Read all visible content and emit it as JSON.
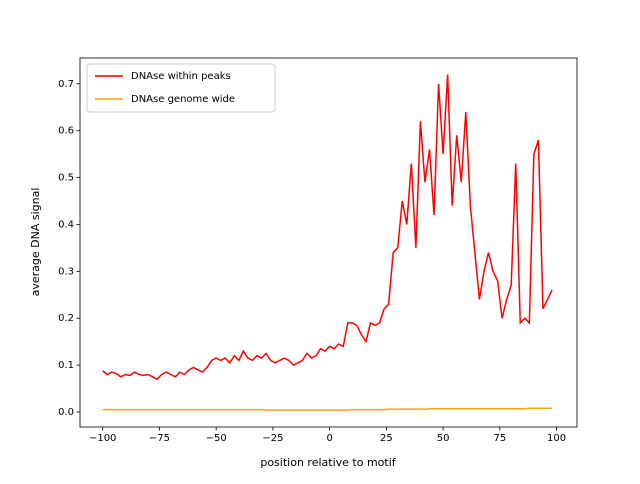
{
  "chart_data": {
    "type": "line",
    "xlabel": "position relative to motif",
    "ylabel": "average DNA signal",
    "x": [
      -100,
      -98,
      -96,
      -94,
      -92,
      -90,
      -88,
      -86,
      -84,
      -82,
      -80,
      -78,
      -76,
      -74,
      -72,
      -70,
      -68,
      -66,
      -64,
      -62,
      -60,
      -58,
      -56,
      -54,
      -52,
      -50,
      -48,
      -46,
      -44,
      -42,
      -40,
      -38,
      -36,
      -34,
      -32,
      -30,
      -28,
      -26,
      -24,
      -22,
      -20,
      -18,
      -16,
      -14,
      -12,
      -10,
      -8,
      -6,
      -4,
      -2,
      0,
      2,
      4,
      6,
      8,
      10,
      12,
      14,
      16,
      18,
      20,
      22,
      24,
      26,
      28,
      30,
      32,
      34,
      36,
      38,
      40,
      42,
      44,
      46,
      48,
      50,
      52,
      54,
      56,
      58,
      60,
      62,
      64,
      66,
      68,
      70,
      72,
      74,
      76,
      78,
      80,
      82,
      84,
      86,
      88,
      90,
      92,
      94,
      96,
      98
    ],
    "series": [
      {
        "name": "DNAse within peaks",
        "color": "#ff0000",
        "values": [
          0.088,
          0.08,
          0.085,
          0.082,
          0.075,
          0.08,
          0.078,
          0.085,
          0.08,
          0.078,
          0.08,
          0.075,
          0.07,
          0.08,
          0.085,
          0.08,
          0.075,
          0.085,
          0.08,
          0.09,
          0.095,
          0.09,
          0.085,
          0.095,
          0.11,
          0.115,
          0.11,
          0.115,
          0.105,
          0.12,
          0.11,
          0.13,
          0.115,
          0.11,
          0.12,
          0.115,
          0.125,
          0.11,
          0.105,
          0.11,
          0.115,
          0.11,
          0.1,
          0.105,
          0.11,
          0.125,
          0.115,
          0.12,
          0.135,
          0.13,
          0.14,
          0.135,
          0.145,
          0.14,
          0.19,
          0.19,
          0.185,
          0.165,
          0.15,
          0.19,
          0.185,
          0.19,
          0.22,
          0.23,
          0.34,
          0.35,
          0.45,
          0.4,
          0.53,
          0.35,
          0.62,
          0.49,
          0.56,
          0.42,
          0.7,
          0.55,
          0.72,
          0.44,
          0.59,
          0.49,
          0.64,
          0.44,
          0.34,
          0.24,
          0.3,
          0.34,
          0.3,
          0.28,
          0.2,
          0.24,
          0.27,
          0.53,
          0.19,
          0.2,
          0.19,
          0.55,
          0.58,
          0.22,
          0.24,
          0.26
        ]
      },
      {
        "name": "DNAse genome wide",
        "color": "#ffa500",
        "values": [
          0.005,
          0.005,
          0.005,
          0.005,
          0.005,
          0.005,
          0.005,
          0.005,
          0.005,
          0.005,
          0.005,
          0.005,
          0.005,
          0.005,
          0.005,
          0.005,
          0.005,
          0.005,
          0.005,
          0.005,
          0.005,
          0.005,
          0.005,
          0.005,
          0.005,
          0.005,
          0.005,
          0.005,
          0.005,
          0.005,
          0.005,
          0.005,
          0.005,
          0.005,
          0.005,
          0.005,
          0.004,
          0.004,
          0.004,
          0.004,
          0.004,
          0.004,
          0.004,
          0.004,
          0.004,
          0.004,
          0.004,
          0.004,
          0.004,
          0.004,
          0.004,
          0.004,
          0.004,
          0.004,
          0.004,
          0.005,
          0.005,
          0.005,
          0.005,
          0.005,
          0.005,
          0.005,
          0.005,
          0.006,
          0.006,
          0.006,
          0.006,
          0.006,
          0.006,
          0.006,
          0.006,
          0.006,
          0.007,
          0.007,
          0.007,
          0.007,
          0.007,
          0.007,
          0.007,
          0.007,
          0.007,
          0.007,
          0.007,
          0.007,
          0.007,
          0.007,
          0.007,
          0.007,
          0.007,
          0.007,
          0.007,
          0.007,
          0.007,
          0.007,
          0.008,
          0.008,
          0.008,
          0.008,
          0.008,
          0.008
        ]
      }
    ],
    "xlim": [
      -110,
      109
    ],
    "ylim": [
      -0.032,
      0.755
    ],
    "xticks": [
      {
        "value": -100,
        "label": "−100"
      },
      {
        "value": -75,
        "label": "−75"
      },
      {
        "value": -50,
        "label": "−50"
      },
      {
        "value": -25,
        "label": "−25"
      },
      0,
      25,
      50,
      75,
      100
    ],
    "yticks": [
      {
        "value": 0,
        "label": "0.0"
      },
      0.1,
      0.2,
      0.3,
      0.4,
      0.5,
      0.6,
      0.7
    ],
    "legend": "upper left"
  }
}
